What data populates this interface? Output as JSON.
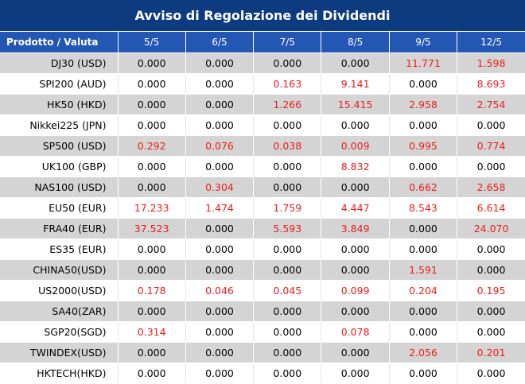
{
  "title": "Avviso di Regolazione dei Dividendi",
  "columns": [
    "Prodotto / Valuta",
    "5/5",
    "6/5",
    "7/5",
    "8/5",
    "9/5",
    "12/5"
  ],
  "rows": [
    {
      "product": "DJ30 (USD)",
      "values": [
        "0.000",
        "0.000",
        "0.000",
        "0.000",
        "11.771",
        "1.598"
      ]
    },
    {
      "product": "SPI200 (AUD)",
      "values": [
        "0.000",
        "0.000",
        "0.163",
        "9.141",
        "0.000",
        "8.693"
      ]
    },
    {
      "product": "HK50 (HKD)",
      "values": [
        "0.000",
        "0.000",
        "1.266",
        "15.415",
        "2.958",
        "2.754"
      ]
    },
    {
      "product": "Nikkei225 (JPN)",
      "values": [
        "0.000",
        "0.000",
        "0.000",
        "0.000",
        "0.000",
        "0.000"
      ]
    },
    {
      "product": "SP500 (USD)",
      "values": [
        "0.292",
        "0.076",
        "0.038",
        "0.009",
        "0.995",
        "0.774"
      ]
    },
    {
      "product": "UK100 (GBP)",
      "values": [
        "0.000",
        "0.000",
        "0.000",
        "8.832",
        "0.000",
        "0.000"
      ]
    },
    {
      "product": "NAS100 (USD)",
      "values": [
        "0.000",
        "0.304",
        "0.000",
        "0.000",
        "0.662",
        "2.658"
      ]
    },
    {
      "product": "EU50 (EUR)",
      "values": [
        "17.233",
        "1.474",
        "1.759",
        "4.447",
        "8.543",
        "6.614"
      ]
    },
    {
      "product": "FRA40 (EUR)",
      "values": [
        "37.523",
        "0.000",
        "5.593",
        "3.849",
        "0.000",
        "24.070"
      ]
    },
    {
      "product": "ES35 (EUR)",
      "values": [
        "0.000",
        "0.000",
        "0.000",
        "0.000",
        "0.000",
        "0.000"
      ]
    },
    {
      "product": "CHINA50(USD)",
      "values": [
        "0.000",
        "0.000",
        "0.000",
        "0.000",
        "1.591",
        "0.000"
      ]
    },
    {
      "product": "US2000(USD)",
      "values": [
        "0.178",
        "0.046",
        "0.045",
        "0.099",
        "0.204",
        "0.195"
      ]
    },
    {
      "product": "SA40(ZAR)",
      "values": [
        "0.000",
        "0.000",
        "0.000",
        "0.000",
        "0.000",
        "0.000"
      ]
    },
    {
      "product": "SGP20(SGD)",
      "values": [
        "0.314",
        "0.000",
        "0.000",
        "0.078",
        "0.000",
        "0.000"
      ]
    },
    {
      "product": "TWINDEX(USD)",
      "values": [
        "0.000",
        "0.000",
        "0.000",
        "0.000",
        "2.056",
        "0.201"
      ]
    },
    {
      "product": "HKTECH(HKD)",
      "values": [
        "0.000",
        "0.000",
        "0.000",
        "0.000",
        "0.000",
        "0.000"
      ]
    }
  ],
  "colors": {
    "title_background": "#0d3b80",
    "header_background": "#2456b4",
    "stripe_gray": "#d4d4d4",
    "positive_value": "#ee1c1c",
    "zero_value": "#000000"
  }
}
